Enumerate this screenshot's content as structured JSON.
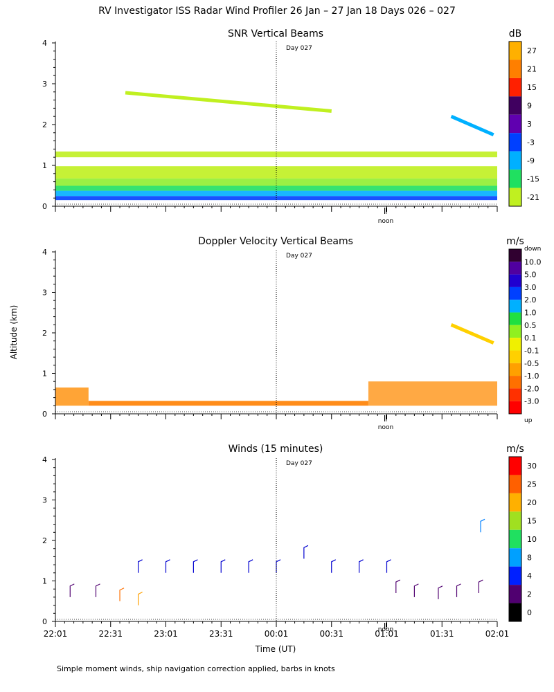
{
  "title": "RV Investigator ISS Radar Wind Profiler  26 Jan – 27 Jan 18 Days 026 – 027",
  "ylabel": "Altitude (km)",
  "xlabel": "Time (UT)",
  "footnote": "Simple moment winds, ship navigation correction applied, barbs in knots",
  "day_marker": "Day 027",
  "noon_label": "noon",
  "y_ticks": [
    "0",
    "1",
    "2",
    "3",
    "4"
  ],
  "x_ticks": [
    "22:01",
    "22:31",
    "23:01",
    "23:31",
    "00:01",
    "00:31",
    "01:01",
    "01:31",
    "02:01"
  ],
  "panels": {
    "snr": {
      "title": "SNR Vertical Beams",
      "unit": "dB"
    },
    "doppler": {
      "title": "Doppler Velocity Vertical Beams",
      "unit": "m/s",
      "top_label": "down",
      "bottom_label": "up"
    },
    "winds": {
      "title": "Winds (15 minutes)",
      "unit": "m/s"
    }
  },
  "chart_data": [
    {
      "type": "heatmap",
      "title": "SNR Vertical Beams",
      "ylabel": "Altitude (km)",
      "ylim": [
        0,
        4
      ],
      "xlim": [
        0,
        240
      ],
      "colorbar_unit": "dB",
      "colorbar_labels": [
        "27",
        "21",
        "15",
        "9",
        "3",
        "-3",
        "-9",
        "-15",
        "-21"
      ],
      "colorbar_colors": [
        "#ffb000",
        "#ff7f00",
        "#ff2000",
        "#400060",
        "#6000b0",
        "#0040ff",
        "#00b0ff",
        "#20e060",
        "#c0f020"
      ],
      "bands": [
        {
          "alt_min": 0.15,
          "alt_max": 0.25,
          "color": "#0040ff"
        },
        {
          "alt_min": 0.25,
          "alt_max": 0.38,
          "color": "#00b0ff"
        },
        {
          "alt_min": 0.38,
          "alt_max": 0.5,
          "color": "#20e060"
        },
        {
          "alt_min": 0.5,
          "alt_max": 0.68,
          "color": "#90ee30"
        },
        {
          "alt_min": 0.68,
          "alt_max": 0.98,
          "color": "#c0f020"
        },
        {
          "alt_min": 1.2,
          "alt_max": 1.34,
          "color": "#c0f020"
        }
      ],
      "features": [
        {
          "t0": 38,
          "t1": 150,
          "alt": 2.58,
          "color": "#c0f020"
        },
        {
          "t0": 215,
          "t1": 238,
          "alt": 2.0,
          "color": "#00b0ff"
        }
      ]
    },
    {
      "type": "heatmap",
      "title": "Doppler Velocity Vertical Beams",
      "ylabel": "Altitude (km)",
      "ylim": [
        0,
        4
      ],
      "xlim": [
        0,
        240
      ],
      "colorbar_unit": "m/s",
      "colorbar_labels": [
        "down",
        "10.0",
        "5.0",
        "3.0",
        "2.0",
        "1.0",
        "0.5",
        "0.1",
        "-0.1",
        "-0.5",
        "-1.0",
        "-2.0",
        "-3.0",
        "up"
      ],
      "colorbar_colors": [
        "#300030",
        "#5000a0",
        "#2000d0",
        "#0040ff",
        "#00b0ff",
        "#20e040",
        "#90f020",
        "#f0f000",
        "#ffd000",
        "#ffa000",
        "#ff7000",
        "#ff3000",
        "#ff0000"
      ],
      "bands": [
        {
          "t0": 0,
          "t1": 18,
          "alt_min": 0.2,
          "alt_max": 0.65,
          "color": "#ff9a20"
        },
        {
          "t0": 18,
          "t1": 170,
          "alt_min": 0.2,
          "alt_max": 0.32,
          "color": "#ff8000"
        },
        {
          "t0": 170,
          "t1": 240,
          "alt_min": 0.2,
          "alt_max": 0.8,
          "color": "#ffa030"
        }
      ],
      "features": [
        {
          "t0": 215,
          "t1": 238,
          "alt": 2.0,
          "color": "#ffd000"
        }
      ]
    },
    {
      "type": "scatter",
      "title": "Winds (15 minutes)",
      "ylabel": "Altitude (km)",
      "xlabel": "Time (UT)",
      "ylim": [
        0,
        4
      ],
      "xlim": [
        0,
        240
      ],
      "colorbar_unit": "m/s",
      "colorbar_labels": [
        "30",
        "25",
        "20",
        "15",
        "10",
        "8",
        "4",
        "2",
        "0"
      ],
      "colorbar_colors": [
        "#ff0000",
        "#ff6000",
        "#ffb000",
        "#a0e020",
        "#20e060",
        "#00a0ff",
        "#0020ff",
        "#500070",
        "#000000"
      ],
      "barbs": [
        {
          "t": 45,
          "alt": 1.2,
          "color": "#0000d0"
        },
        {
          "t": 60,
          "alt": 1.2,
          "color": "#0000d0"
        },
        {
          "t": 75,
          "alt": 1.2,
          "color": "#0000d0"
        },
        {
          "t": 90,
          "alt": 1.2,
          "color": "#0000d0"
        },
        {
          "t": 105,
          "alt": 1.2,
          "color": "#0000d0"
        },
        {
          "t": 120,
          "alt": 1.2,
          "color": "#0000d0"
        },
        {
          "t": 135,
          "alt": 1.55,
          "color": "#0000d0"
        },
        {
          "t": 150,
          "alt": 1.2,
          "color": "#0000d0"
        },
        {
          "t": 165,
          "alt": 1.2,
          "color": "#0000d0"
        },
        {
          "t": 180,
          "alt": 1.2,
          "color": "#0000d0"
        },
        {
          "t": 231,
          "alt": 2.2,
          "color": "#0080ff"
        },
        {
          "t": 35,
          "alt": 0.5,
          "color": "#ff7000"
        },
        {
          "t": 45,
          "alt": 0.4,
          "color": "#ffa000"
        },
        {
          "t": 22,
          "alt": 0.6,
          "color": "#500070"
        },
        {
          "t": 8,
          "alt": 0.6,
          "color": "#500070"
        },
        {
          "t": 185,
          "alt": 0.7,
          "color": "#500070"
        },
        {
          "t": 195,
          "alt": 0.6,
          "color": "#500070"
        },
        {
          "t": 208,
          "alt": 0.55,
          "color": "#500070"
        },
        {
          "t": 218,
          "alt": 0.6,
          "color": "#500070"
        },
        {
          "t": 230,
          "alt": 0.7,
          "color": "#500070"
        }
      ]
    }
  ]
}
